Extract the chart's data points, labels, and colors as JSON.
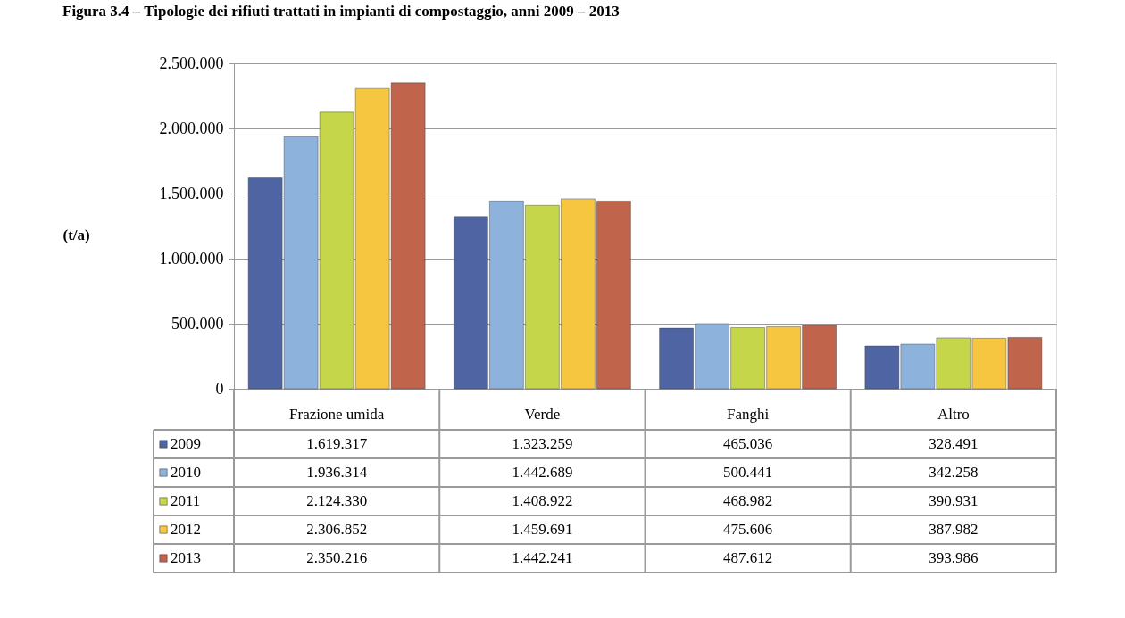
{
  "chart_data": {
    "type": "bar",
    "title": "Figura 3.4 – Tipologie dei rifiuti trattati in impianti di compostaggio, anni 2009 – 2013",
    "ylabel": "(t/a)",
    "categories": [
      "Frazione umida",
      "Verde",
      "Fanghi",
      "Altro"
    ],
    "series": [
      {
        "name": "2009",
        "color": "#4f65a3",
        "values": [
          1619317,
          1323259,
          465036,
          328491
        ],
        "value_labels": [
          "1.619.317",
          "1.323.259",
          "465.036",
          "328.491"
        ]
      },
      {
        "name": "2010",
        "color": "#8db3dc",
        "values": [
          1936314,
          1442689,
          500441,
          342258
        ],
        "value_labels": [
          "1.936.314",
          "1.442.689",
          "500.441",
          "342.258"
        ]
      },
      {
        "name": "2011",
        "color": "#c5d64b",
        "values": [
          2124330,
          1408922,
          468982,
          390931
        ],
        "value_labels": [
          "2.124.330",
          "1.408.922",
          "468.982",
          "390.931"
        ]
      },
      {
        "name": "2012",
        "color": "#f6c640",
        "values": [
          2306852,
          1459691,
          475606,
          387982
        ],
        "value_labels": [
          "2.306.852",
          "1.459.691",
          "475.606",
          "387.982"
        ]
      },
      {
        "name": "2013",
        "color": "#c0644c",
        "values": [
          2350216,
          1442241,
          487612,
          393986
        ],
        "value_labels": [
          "2.350.216",
          "1.442.241",
          "487.612",
          "393.986"
        ]
      }
    ],
    "ylim": [
      0,
      2500000
    ],
    "yticks": [
      0,
      {
        "value": 500000,
        "label": "500.000"
      },
      {
        "value": 1000000,
        "label": "1.000.000"
      },
      {
        "value": 1500000,
        "label": "1.500.000"
      },
      {
        "value": 2000000,
        "label": "2.000.000"
      },
      {
        "value": 2500000,
        "label": "2.500.000"
      }
    ],
    "grid": "y",
    "legend": "bottom"
  }
}
